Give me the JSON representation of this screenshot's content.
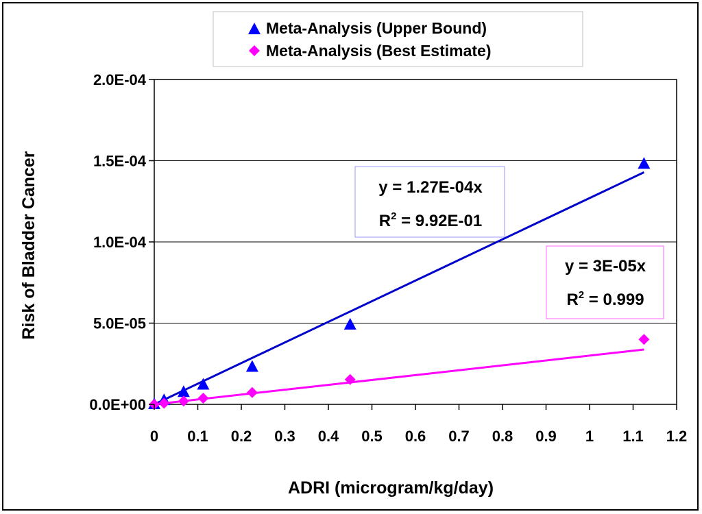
{
  "chart_data": {
    "type": "scatter",
    "title": "",
    "xlabel": "ADRI (microgram/kg/day)",
    "ylabel": "Risk of Bladder Cancer",
    "xlim": [
      0,
      1.2
    ],
    "ylim": [
      0,
      0.0002
    ],
    "x_ticks": [
      "0",
      "0.1",
      "0.2",
      "0.3",
      "0.4",
      "0.5",
      "0.6",
      "0.7",
      "0.8",
      "0.9",
      "1",
      "1.1",
      "1.2"
    ],
    "y_ticks": [
      "0.0E+00",
      "5.0E-05",
      "1.0E-04",
      "1.5E-04",
      "2.0E-04"
    ],
    "grid": "horizontal",
    "legend_position": "top-center",
    "series": [
      {
        "name": "Meta-Analysis (Upper Bound)",
        "marker": "triangle",
        "color": "#0000ff",
        "x": [
          0,
          0.0225,
          0.0675,
          0.1125,
          0.225,
          0.45,
          1.125
        ],
        "y": [
          0,
          2.5e-06,
          7.5e-06,
          1.2e-05,
          2.3e-05,
          4.9e-05,
          0.000148
        ]
      },
      {
        "name": "Meta-Analysis (Best Estimate)",
        "marker": "diamond",
        "color": "#ff00ff",
        "x": [
          0,
          0.0225,
          0.0675,
          0.1125,
          0.225,
          0.45,
          1.125
        ],
        "y": [
          0,
          7e-07,
          2e-06,
          3.8e-06,
          7.3e-06,
          1.53e-05,
          4e-05
        ]
      }
    ],
    "trendlines": [
      {
        "series": "Meta-Analysis (Upper Bound)",
        "slope": 0.000127,
        "x_end": 1.125,
        "color": "#0000cc",
        "equation": "y = 1.27E-04x",
        "r2_label": "R",
        "r2_sup": "2",
        "r2_value": " = 9.92E-01",
        "box_color": "#9999ff"
      },
      {
        "series": "Meta-Analysis (Best Estimate)",
        "slope": 3e-05,
        "x_end": 1.125,
        "color": "#ff00ff",
        "equation": "y = 3E-05x",
        "r2_label": "R",
        "r2_sup": "2",
        "r2_value": " = 0.999",
        "box_color": "#ff66ff"
      }
    ]
  }
}
